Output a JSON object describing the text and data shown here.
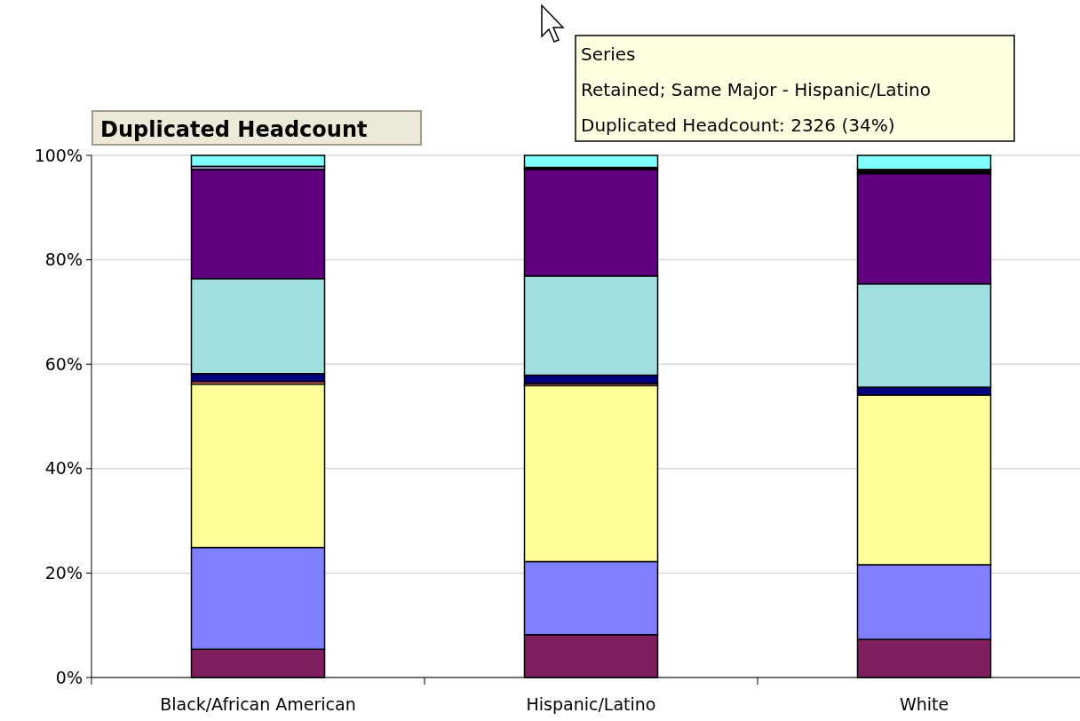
{
  "chart_data": {
    "type": "bar",
    "stacked": true,
    "categories": [
      "Black/African American",
      "Hispanic/Latino",
      "White"
    ],
    "series": [
      {
        "color": "#7f1f5f",
        "values": [
          5.4,
          8.2,
          7.3
        ]
      },
      {
        "color": "#8080ff",
        "values": [
          19.5,
          14.0,
          14.3
        ]
      },
      {
        "color": "#ffff99",
        "values": [
          31.3,
          33.7,
          32.5
        ]
      },
      {
        "color": "#ff8080",
        "values": [
          0.5,
          0.4,
          0
        ]
      },
      {
        "color": "#000080",
        "values": [
          1.5,
          1.6,
          1.5
        ]
      },
      {
        "color": "#a0dee0",
        "values": [
          18.2,
          19.0,
          19.8
        ]
      },
      {
        "color": "#600080",
        "values": [
          20.9,
          20.4,
          21.1
        ]
      },
      {
        "color": "#9999cc",
        "values": [
          0.6,
          0,
          0
        ]
      },
      {
        "color": "#000000",
        "values": [
          0,
          0.4,
          0.8
        ]
      },
      {
        "color": "#80ffff",
        "values": [
          2.1,
          2.3,
          2.7
        ]
      }
    ],
    "ylim": [
      0,
      100
    ],
    "yticks": [
      {
        "value": 0,
        "label": "0%"
      },
      {
        "value": 20,
        "label": "20%"
      },
      {
        "value": 40,
        "label": "40%"
      },
      {
        "value": 60,
        "label": "60%"
      },
      {
        "value": 80,
        "label": "80%"
      },
      {
        "value": 100,
        "label": "100%"
      }
    ],
    "grid": "y",
    "annotations": [
      "Duplicated Headcount",
      "Series\nRetained; Same Major - Hispanic/Latino\nDuplicated Headcount: 2326 (34%)"
    ]
  }
}
